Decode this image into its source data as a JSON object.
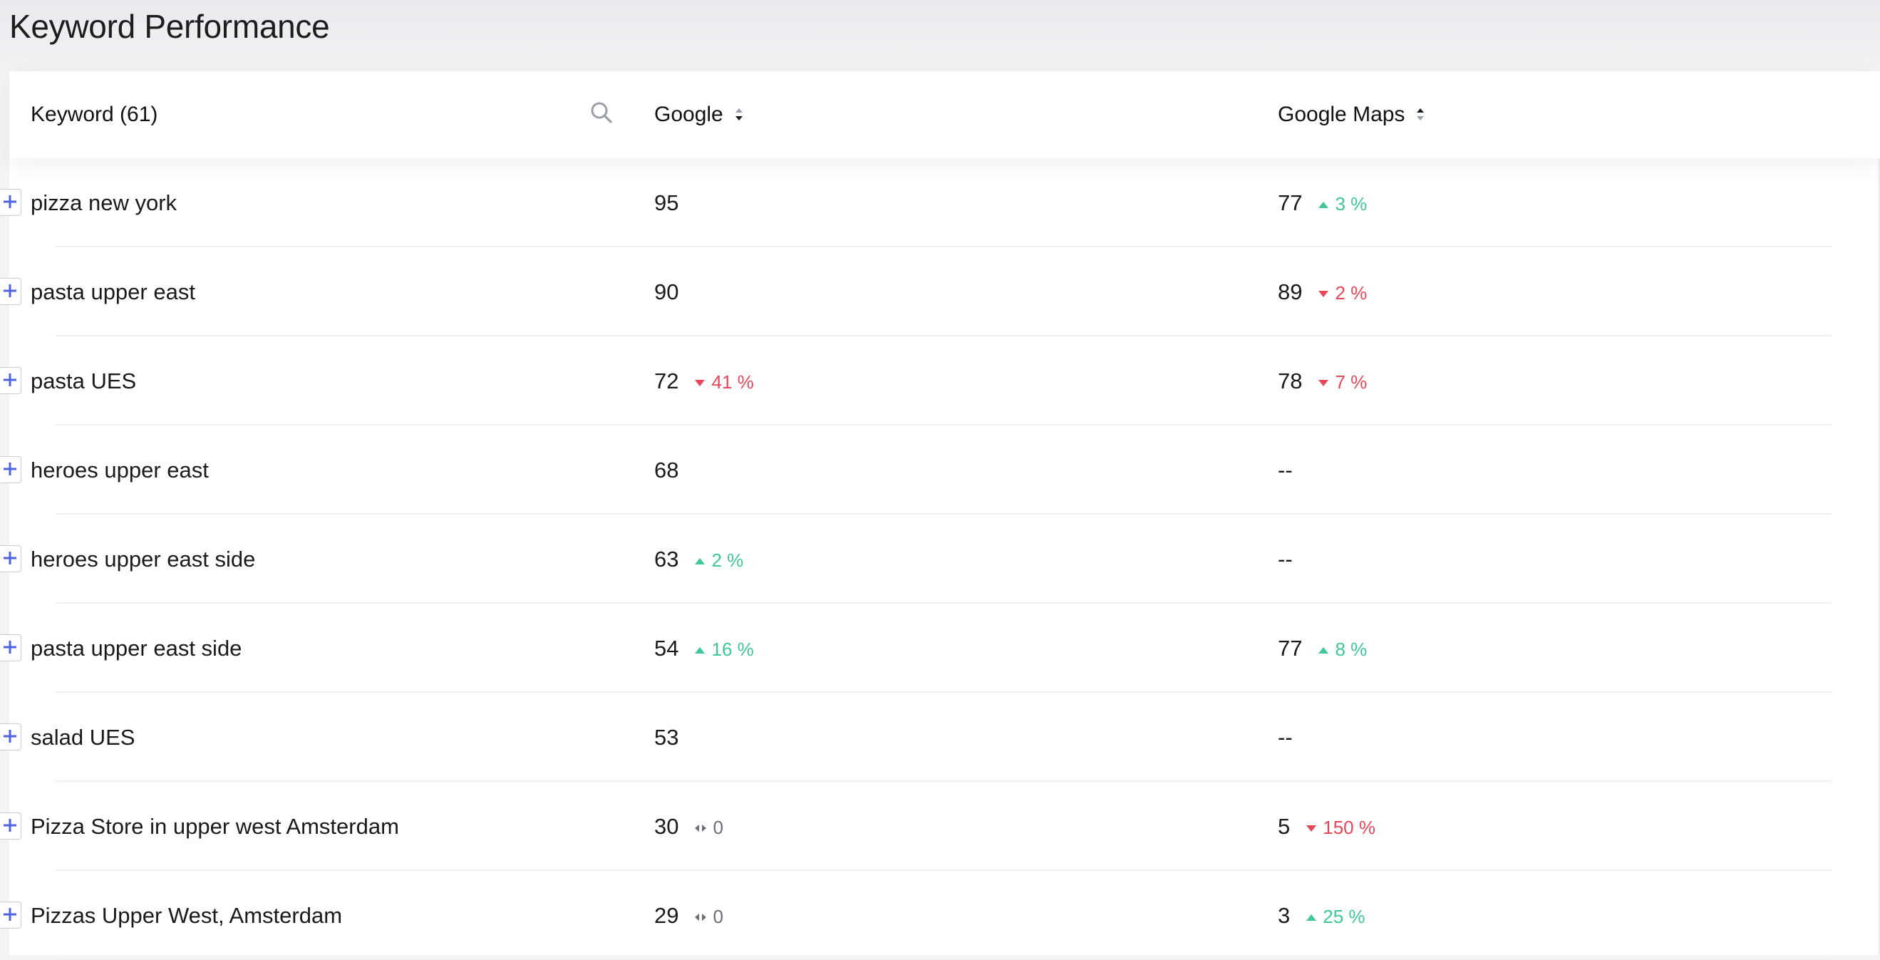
{
  "page": {
    "title": "Keyword Performance"
  },
  "table": {
    "columns": {
      "keyword": "Keyword (61)",
      "google": "Google",
      "maps": "Google Maps"
    },
    "rows": [
      {
        "keyword": "pizza new york",
        "google": "95",
        "google_change": "",
        "google_dir": "",
        "maps": "77",
        "maps_change": "3 %",
        "maps_dir": "up"
      },
      {
        "keyword": "pasta upper east",
        "google": "90",
        "google_change": "",
        "google_dir": "",
        "maps": "89",
        "maps_change": "2 %",
        "maps_dir": "down"
      },
      {
        "keyword": "pasta UES",
        "google": "72",
        "google_change": "41 %",
        "google_dir": "down",
        "maps": "78",
        "maps_change": "7 %",
        "maps_dir": "down"
      },
      {
        "keyword": "heroes upper east",
        "google": "68",
        "google_change": "",
        "google_dir": "",
        "maps": "--",
        "maps_change": "",
        "maps_dir": ""
      },
      {
        "keyword": "heroes upper east side",
        "google": "63",
        "google_change": "2 %",
        "google_dir": "up",
        "maps": "--",
        "maps_change": "",
        "maps_dir": ""
      },
      {
        "keyword": "pasta upper east side",
        "google": "54",
        "google_change": "16 %",
        "google_dir": "up",
        "maps": "77",
        "maps_change": "8 %",
        "maps_dir": "up"
      },
      {
        "keyword": "salad UES",
        "google": "53",
        "google_change": "",
        "google_dir": "",
        "maps": "--",
        "maps_change": "",
        "maps_dir": ""
      },
      {
        "keyword": "Pizza Store in upper west Amsterdam",
        "google": "30",
        "google_change": "0",
        "google_dir": "flat",
        "maps": "5",
        "maps_change": "150 %",
        "maps_dir": "down"
      },
      {
        "keyword": "Pizzas Upper West, Amsterdam",
        "google": "29",
        "google_change": "0",
        "google_dir": "flat",
        "maps": "3",
        "maps_change": "25 %",
        "maps_dir": "up"
      }
    ]
  },
  "icons": {
    "search": "search-icon",
    "sort": "sort-icon",
    "expand": "plus-icon",
    "up": "caret-up-icon",
    "down": "caret-down-icon",
    "flat": "no-change-icon"
  },
  "colors": {
    "up": "#3fc79a",
    "down": "#e8475a",
    "flat": "#6b6f76",
    "expand": "#4f63e0"
  }
}
